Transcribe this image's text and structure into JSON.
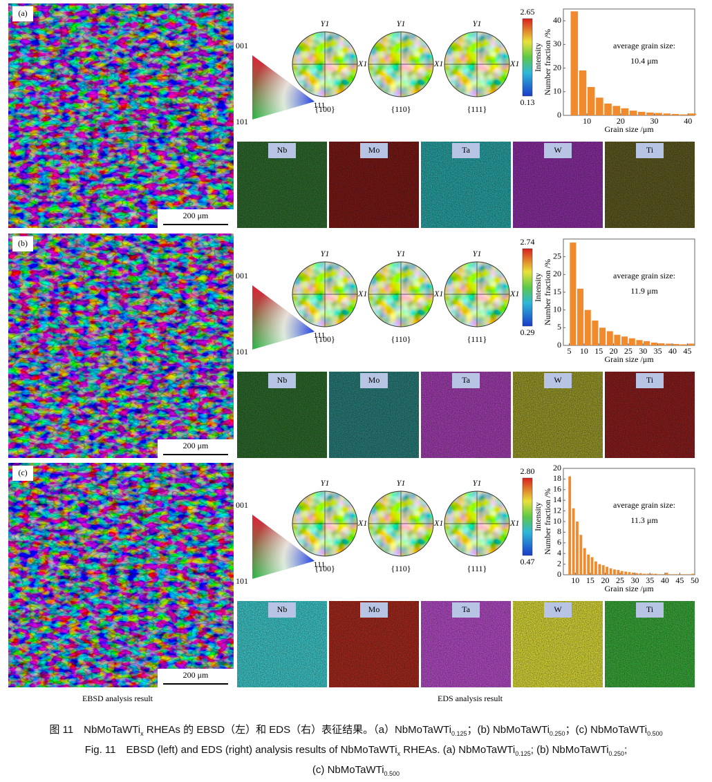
{
  "panels": [
    {
      "label": "(a)",
      "scale_bar": "200 μm",
      "ipf": [
        "001",
        "101",
        "111"
      ],
      "pole_figures": [
        {
          "y": "Y1",
          "x": "X1",
          "plane": "{100}"
        },
        {
          "y": "Y1",
          "x": "X1",
          "plane": "{110}"
        },
        {
          "y": "Y1",
          "x": "X1",
          "plane": "{111}"
        }
      ],
      "colorbar": {
        "title": "Intensity",
        "max": "2.65",
        "min": "0.13"
      },
      "chart_data": {
        "type": "histogram",
        "x_label": "Grain size /μm",
        "y_label": "Number fraction /%",
        "color": "#f08a2c",
        "annotation": [
          "average grain size:",
          "10.4 μm"
        ],
        "bins": [
          5,
          7.5,
          10,
          12.5,
          15,
          17.5,
          20,
          22.5,
          25,
          27.5,
          30,
          32.5,
          35,
          37.5,
          40,
          42.5
        ],
        "values": [
          44,
          19,
          12,
          7.5,
          5,
          4,
          3,
          2,
          1.5,
          1.2,
          1,
          0.8,
          0.6,
          0.4,
          0.8
        ],
        "xlim": [
          3,
          42
        ],
        "xticks": [
          10,
          20,
          30,
          40
        ],
        "ylim": [
          0,
          45
        ],
        "yticks": [
          0,
          10,
          20,
          30,
          40
        ]
      },
      "eds": [
        {
          "label": "Nb",
          "color": "#2f6a2e"
        },
        {
          "label": "Mo",
          "color": "#7a1a17"
        },
        {
          "label": "Ta",
          "color": "#2aa3a3"
        },
        {
          "label": "W",
          "color": "#8a2fa0"
        },
        {
          "label": "Ti",
          "color": "#5e5a22"
        }
      ]
    },
    {
      "label": "(b)",
      "scale_bar": "200 μm",
      "ipf": [
        "001",
        "101",
        "111"
      ],
      "pole_figures": [
        {
          "y": "Y1",
          "x": "X1",
          "plane": "{100}"
        },
        {
          "y": "Y1",
          "x": "X1",
          "plane": "{110}"
        },
        {
          "y": "Y1",
          "x": "X1",
          "plane": "{111}"
        }
      ],
      "colorbar": {
        "title": "Intensity",
        "max": "2.74",
        "min": "0.29"
      },
      "chart_data": {
        "type": "histogram",
        "x_label": "Grain size /μm",
        "y_label": "Number fraction /%",
        "color": "#f08a2c",
        "annotation": [
          "average grain size:",
          "11.9 μm"
        ],
        "bins": [
          5,
          7.5,
          10,
          12.5,
          15,
          17.5,
          20,
          22.5,
          25,
          27.5,
          30,
          32.5,
          35,
          37.5,
          40,
          42.5,
          45,
          47.5
        ],
        "values": [
          29,
          16,
          10,
          7,
          5,
          4,
          3,
          2.5,
          2,
          1.5,
          1.2,
          0.8,
          0.6,
          0.5,
          0.4,
          0.3,
          0.5
        ],
        "xlim": [
          3,
          47.5
        ],
        "xticks": [
          5,
          10,
          15,
          20,
          25,
          30,
          35,
          40,
          45
        ],
        "ylim": [
          0,
          30
        ],
        "yticks": [
          0,
          5,
          10,
          15,
          20,
          25
        ]
      },
      "eds": [
        {
          "label": "Nb",
          "color": "#2d6a2c"
        },
        {
          "label": "Mo",
          "color": "#2a7d7a"
        },
        {
          "label": "Ta",
          "color": "#a23fb0"
        },
        {
          "label": "W",
          "color": "#9a9a2c"
        },
        {
          "label": "Ti",
          "color": "#8a1e1e"
        }
      ]
    },
    {
      "label": "(c)",
      "scale_bar": "200 μm",
      "ipf": [
        "001",
        "101",
        "111"
      ],
      "pole_figures": [
        {
          "y": "Y1",
          "x": "X1",
          "plane": "{100}"
        },
        {
          "y": "Y1",
          "x": "X1",
          "plane": "{110}"
        },
        {
          "y": "Y1",
          "x": "X1",
          "plane": "{111}"
        }
      ],
      "colorbar": {
        "title": "Intensity",
        "max": "2.80",
        "min": "0.47"
      },
      "chart_data": {
        "type": "histogram",
        "x_label": "Grain size /μm",
        "y_label": "Number fraction /%",
        "color": "#f08a2c",
        "annotation": [
          "average grain size:",
          "11.3 μm"
        ],
        "bins": [
          7.5,
          8.75,
          10,
          11.25,
          12.5,
          13.75,
          15,
          16.25,
          17.5,
          18.75,
          20,
          21.25,
          22.5,
          23.75,
          25,
          26.25,
          27.5,
          28.75,
          30,
          31.25,
          32.5,
          33.75,
          35,
          36.25,
          37.5,
          38.75,
          40,
          41.25,
          42.5,
          43.75,
          45,
          46.25,
          47.5,
          48.75,
          50
        ],
        "values": [
          18.5,
          12.5,
          10,
          7.5,
          5,
          3.8,
          3.3,
          2.5,
          2,
          1.8,
          1.5,
          1.2,
          1,
          0.9,
          0.7,
          0.6,
          0.5,
          0.4,
          0.3,
          0.3,
          0.2,
          0.2,
          0.2,
          0.2,
          0.1,
          0.1,
          0.4,
          0.1,
          0.1,
          0.1,
          0.1,
          0.1,
          0.1,
          0.2
        ],
        "xlim": [
          6,
          50
        ],
        "xticks": [
          10,
          15,
          20,
          25,
          30,
          35,
          40,
          45,
          50
        ],
        "ylim": [
          0,
          20
        ],
        "yticks": [
          0,
          2,
          4,
          6,
          8,
          10,
          12,
          14,
          16,
          18,
          20
        ]
      },
      "eds": [
        {
          "label": "Nb",
          "color": "#3fc7c9"
        },
        {
          "label": "Mo",
          "color": "#a52a1e"
        },
        {
          "label": "Ta",
          "color": "#b24cc4"
        },
        {
          "label": "W",
          "color": "#d9d83a"
        },
        {
          "label": "Ti",
          "color": "#3aa83a"
        }
      ]
    }
  ],
  "footer": {
    "ebsd": "EBSD analysis result",
    "eds": "EDS analysis result"
  },
  "caption": {
    "cn": [
      "图 11　NbMoTaWTi",
      "x",
      " RHEAs 的 EBSD（左）和 EDS（右）表征结果。（a）NbMoTaWTi",
      "0.125",
      "；(b) NbMoTaWTi",
      "0.250",
      "；(c) NbMoTaWTi",
      "0.500"
    ],
    "en": [
      [
        "Fig. 11　EBSD (left) and EDS (right) analysis results of NbMoTaWTi",
        "x",
        " RHEAs. (a) NbMoTaWTi",
        "0.125",
        "; (b) NbMoTaWTi",
        "0.250",
        ";"
      ],
      [
        "(c) NbMoTaWTi",
        "0.500"
      ]
    ]
  }
}
